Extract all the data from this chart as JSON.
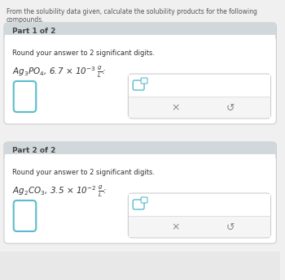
{
  "title": "From the solubility data given, calculate the solubility products for the following compounds.",
  "title_color": "#555555",
  "bg_color": "#f0f0f0",
  "panel_bg": "#ffffff",
  "header_bg": "#d0d8dc",
  "part1_header": "Part 1 of 2",
  "part1_instruction": "Round your answer to 2 significant digits.",
  "part1_compound": "Ag$_3$PO$_4$, 6.7 × 10$^{-3}$ $\\frac{g}{L}$:",
  "part2_header": "Part 2 of 2",
  "part2_instruction": "Round your answer to 2 significant digits.",
  "part2_compound": "Ag$_2$CO$_3$, 3.5 × 10$^{-2}$ $\\frac{g}{L}$:",
  "input_box_color": "#5bbccc",
  "answer_box_bg": "#ffffff",
  "answer_box_border": "#cccccc",
  "answer_inner_bg": "#f5f5f5",
  "x_color": "#888888",
  "refresh_color": "#888888",
  "header_text_color": "#444444",
  "body_text_color": "#333333"
}
